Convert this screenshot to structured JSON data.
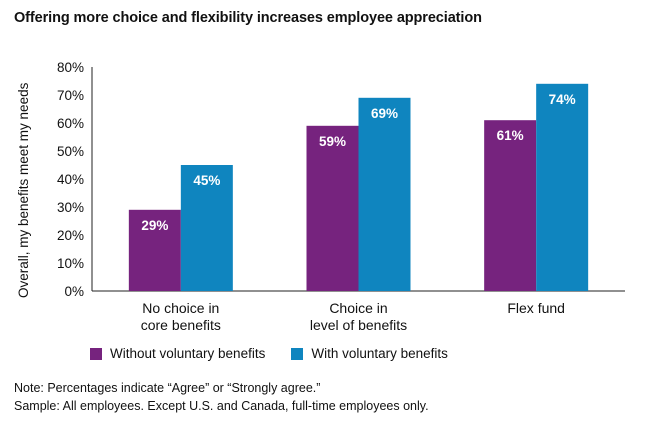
{
  "chart_data": {
    "type": "bar",
    "title": "Offering more choice and flexibility increases employee appreciation",
    "ylabel": "Overall, my benefits meet my needs",
    "xlabel": "",
    "ylim": [
      0,
      80
    ],
    "yticks": [
      "0%",
      "10%",
      "20%",
      "30%",
      "40%",
      "50%",
      "60%",
      "70%",
      "80%"
    ],
    "categories": [
      [
        "No choice in",
        "core benefits"
      ],
      [
        "Choice in",
        "level of benefits"
      ],
      [
        "Flex fund"
      ]
    ],
    "series": [
      {
        "name": "Without voluntary benefits",
        "color": "#76237e",
        "values": [
          29,
          59,
          61
        ],
        "labels": [
          "29%",
          "59%",
          "61%"
        ]
      },
      {
        "name": "With voluntary benefits",
        "color": "#0f85bf",
        "values": [
          45,
          69,
          74
        ],
        "labels": [
          "45%",
          "69%",
          "74%"
        ]
      }
    ],
    "grid": false,
    "legend_position": "bottom-left"
  },
  "notes": {
    "line1": "Note: Percentages indicate “Agree” or “Strongly agree.”",
    "line2": "Sample: All employees. Except U.S. and Canada, full-time employees only."
  }
}
